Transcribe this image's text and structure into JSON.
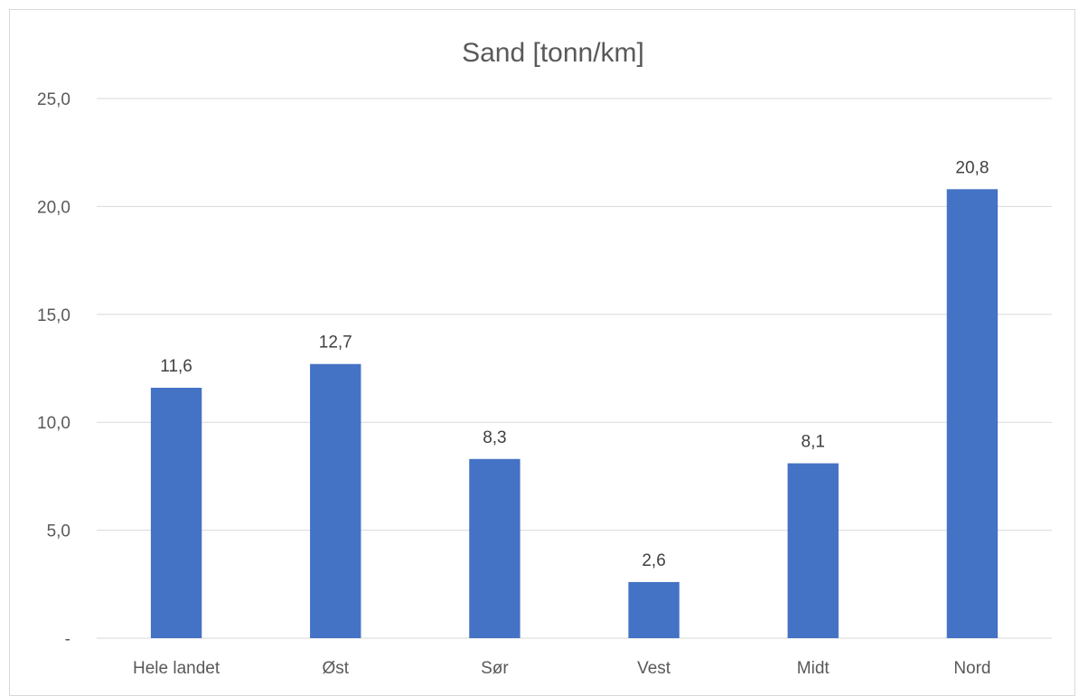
{
  "chart_data": {
    "type": "bar",
    "title": "Sand [tonn/km]",
    "categories": [
      "Hele landet",
      "Øst",
      "Sør",
      "Vest",
      "Midt",
      "Nord"
    ],
    "values": [
      11.6,
      12.7,
      8.3,
      2.6,
      8.1,
      20.8
    ],
    "data_labels": [
      "11,6",
      "12,7",
      "8,3",
      "2,6",
      "8,1",
      "20,8"
    ],
    "ylim": [
      0,
      25
    ],
    "y_ticks": [
      0,
      5,
      10,
      15,
      20,
      25
    ],
    "y_tick_labels": [
      "-",
      "5,0",
      "10,0",
      "15,0",
      "20,0",
      "25,0"
    ],
    "xlabel": "",
    "ylabel": "",
    "grid": true,
    "legend": "none",
    "bar_color": "#4472c4",
    "grid_color": "#d9d9d9"
  }
}
